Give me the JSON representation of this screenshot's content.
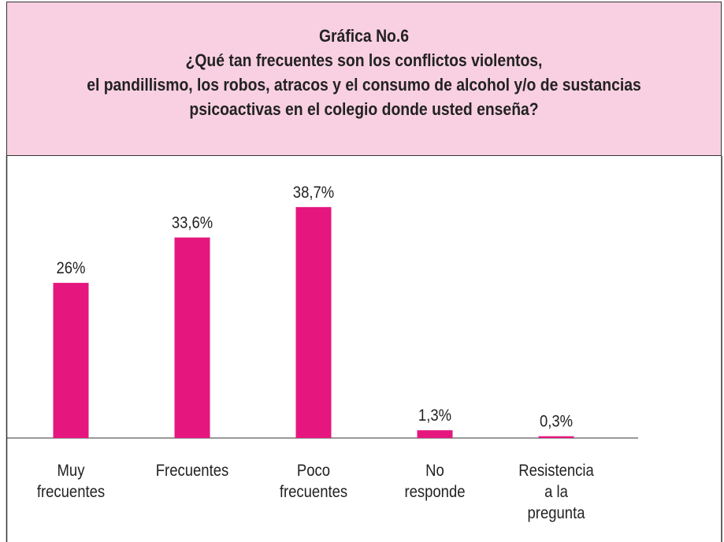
{
  "chart_data": {
    "type": "bar",
    "title": "Gráfica No.6",
    "subtitle": "¿Qué tan frecuentes son los conflictos violentos,\nel pandillismo, los robos, atracos y el consumo de alcohol y/o de sustancias\npsicoactivas en el colegio donde usted enseña?",
    "categories": [
      "Muy\nfrecuentes",
      "Frecuentes",
      "Poco\nfrecuentes",
      "No\nresponde",
      "Resistencia\na la\npregunta"
    ],
    "values": [
      26,
      33.6,
      38.7,
      1.3,
      0.3
    ],
    "value_labels": [
      "26%",
      "33,6%",
      "38,7%",
      "1,3%",
      "0,3%"
    ],
    "color": "#e5177e",
    "ylim": [
      0,
      40
    ]
  }
}
